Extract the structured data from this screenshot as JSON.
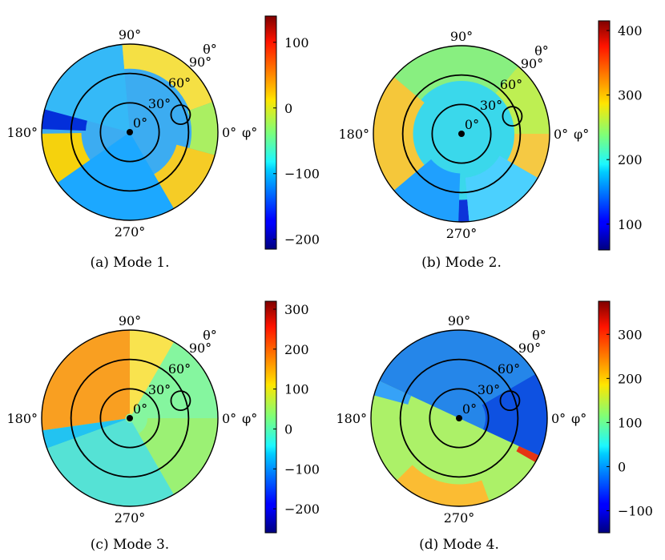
{
  "chart_data": [
    {
      "type": "heatmap",
      "caption": "(a) Mode 1.",
      "radial_ticks": [
        "0°",
        "30°",
        "60°",
        "90°"
      ],
      "angular_ticks": [
        "0°",
        "90°",
        "180°",
        "270°"
      ],
      "radial_axis_label": "θ°",
      "angular_axis_label": "φ°",
      "colorbar": {
        "ticks": [
          100,
          0,
          -100,
          -200
        ],
        "tick_labels": [
          "100",
          "0",
          "−100",
          "−200"
        ],
        "range": [
          -215,
          140
        ]
      },
      "colormap": "jet"
    },
    {
      "type": "heatmap",
      "caption": "(b) Mode 2.",
      "radial_ticks": [
        "0°",
        "30°",
        "60°",
        "90°"
      ],
      "angular_ticks": [
        "0°",
        "90°",
        "180°",
        "270°"
      ],
      "radial_axis_label": "θ°",
      "angular_axis_label": "φ°",
      "colorbar": {
        "ticks": [
          400,
          300,
          200,
          100
        ],
        "tick_labels": [
          "400",
          "300",
          "200",
          "100"
        ],
        "range": [
          60,
          415
        ]
      },
      "colormap": "jet"
    },
    {
      "type": "heatmap",
      "caption": "(c) Mode 3.",
      "radial_ticks": [
        "0°",
        "30°",
        "60°",
        "90°"
      ],
      "angular_ticks": [
        "0°",
        "90°",
        "180°",
        "270°"
      ],
      "radial_axis_label": "θ°",
      "angular_axis_label": "φ°",
      "colorbar": {
        "ticks": [
          300,
          200,
          100,
          0,
          -100,
          -200
        ],
        "tick_labels": [
          "300",
          "200",
          "100",
          "0",
          "−100",
          "−200"
        ],
        "range": [
          -260,
          320
        ]
      },
      "colormap": "jet"
    },
    {
      "type": "heatmap",
      "caption": "(d) Mode 4.",
      "radial_ticks": [
        "0°",
        "30°",
        "60°",
        "90°"
      ],
      "angular_ticks": [
        "0°",
        "90°",
        "180°",
        "270°"
      ],
      "radial_axis_label": "θ°",
      "angular_axis_label": "φ°",
      "colorbar": {
        "ticks": [
          300,
          200,
          100,
          0,
          -100
        ],
        "tick_labels": [
          "300",
          "200",
          "100",
          "0",
          "−100"
        ],
        "range": [
          -150,
          375
        ]
      },
      "colormap": "jet"
    }
  ]
}
